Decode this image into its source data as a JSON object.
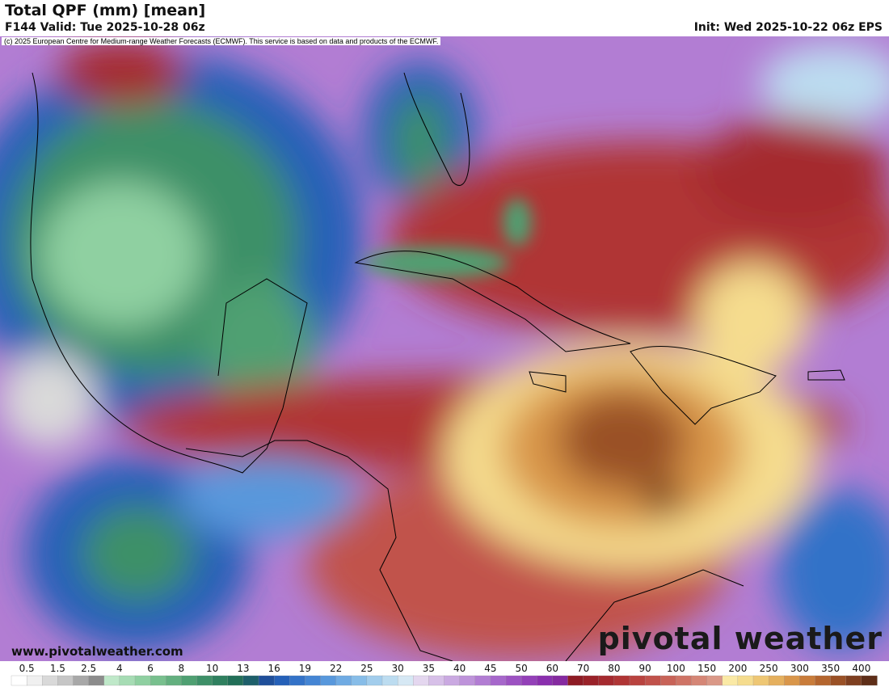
{
  "header": {
    "title": "Total QPF (mm) [mean]",
    "valid": "F144 Valid: Tue 2025-10-28 06z",
    "init": "Init: Wed 2025-10-22 06z EPS"
  },
  "copyright": "(c) 2025 European Centre for Medium-range Weather Forecasts (ECMWF). This service is based on data and products of the ECMWF.",
  "map": {
    "website": "www.pivotalweather.com",
    "logo": "pivotal weather"
  },
  "colorbar": {
    "ticks": [
      0.5,
      1.5,
      2.5,
      4,
      6,
      8,
      10,
      13,
      16,
      19,
      22,
      25,
      30,
      35,
      40,
      45,
      50,
      60,
      70,
      80,
      90,
      100,
      150,
      200,
      250,
      300,
      350,
      400
    ],
    "colors": [
      "#ffffff",
      "#f0f0f0",
      "#d9d9d9",
      "#c6c6c6",
      "#a8a8a8",
      "#8c8c8c",
      "#bfe8c9",
      "#a6dcb4",
      "#8fd0a1",
      "#78c08e",
      "#63b07f",
      "#4fa072",
      "#3e9068",
      "#2f805f",
      "#226f58",
      "#1d5f6a",
      "#1f4f9a",
      "#2560b8",
      "#3372c8",
      "#4485d4",
      "#5898dc",
      "#6fabe3",
      "#87bde8",
      "#a2cdec",
      "#bcdcf0",
      "#d6e8f4",
      "#e4d7ef",
      "#d7c0e8",
      "#caa9e1",
      "#be93da",
      "#b27dd3",
      "#a667cb",
      "#9c52c2",
      "#9340b8",
      "#8a2fae",
      "#852aa0",
      "#8e1b24",
      "#9a2229",
      "#a52a2f",
      "#b03535",
      "#b9433f",
      "#c1524b",
      "#c86358",
      "#cf7466",
      "#d58676",
      "#da9887",
      "#fae9a5",
      "#f5dc8e",
      "#eec774",
      "#e5b05e",
      "#d9964a",
      "#c97c3a",
      "#b4652e",
      "#9a5126",
      "#7e3f20",
      "#5e2e18"
    ]
  }
}
